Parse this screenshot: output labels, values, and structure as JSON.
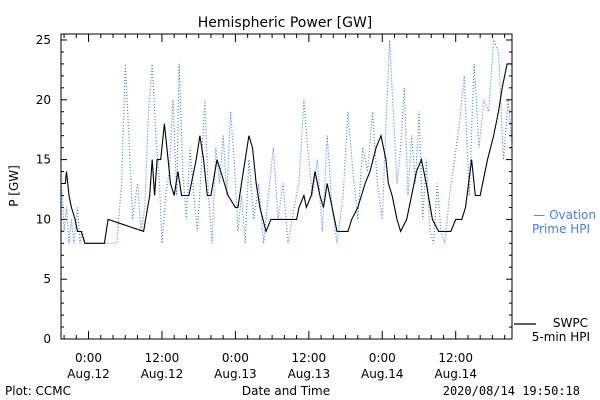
{
  "chart_data": {
    "type": "line",
    "title": "Hemispheric Power [GW]",
    "ylabel": "P [GW]",
    "xlabel": "Date and Time",
    "ylim": [
      0,
      25.5
    ],
    "yticks": [
      0,
      5,
      10,
      15,
      20,
      25
    ],
    "xlim_hours": [
      -2.25,
      34.6
    ],
    "x_ticks": [
      {
        "hour": 0,
        "time": "0:00",
        "date": "Aug.12"
      },
      {
        "hour": 6,
        "time": "12:00",
        "date": "Aug.12"
      },
      {
        "hour": 12,
        "time": "0:00",
        "date": "Aug.13"
      },
      {
        "hour": 18,
        "time": "12:00",
        "date": "Aug.13"
      },
      {
        "hour": 24,
        "time": "0:00",
        "date": "Aug.14"
      },
      {
        "hour": 30,
        "time": "12:00",
        "date": "Aug.14"
      }
    ],
    "series": [
      {
        "name": "SWPC 5-min HPI",
        "legend_lines": [
          "SWPC",
          "5-min HPI"
        ],
        "color": "#000000",
        "style": "solid",
        "points": [
          [
            -2.2,
            13
          ],
          [
            -1.9,
            13
          ],
          [
            -1.8,
            14
          ],
          [
            -1.6,
            12
          ],
          [
            -1.4,
            11
          ],
          [
            -1.1,
            10
          ],
          [
            -0.9,
            9
          ],
          [
            -0.6,
            9
          ],
          [
            -0.3,
            8
          ],
          [
            1.3,
            8
          ],
          [
            1.6,
            10
          ],
          [
            4.5,
            9
          ],
          [
            5.0,
            12
          ],
          [
            5.2,
            15
          ],
          [
            5.4,
            12
          ],
          [
            5.6,
            15
          ],
          [
            5.9,
            15
          ],
          [
            6.2,
            18
          ],
          [
            6.5,
            15
          ],
          [
            6.7,
            13
          ],
          [
            7.0,
            12
          ],
          [
            7.3,
            14
          ],
          [
            7.6,
            12
          ],
          [
            8.2,
            12
          ],
          [
            8.8,
            15
          ],
          [
            9.1,
            17
          ],
          [
            9.4,
            15
          ],
          [
            9.7,
            12
          ],
          [
            10.0,
            12
          ],
          [
            10.5,
            15
          ],
          [
            10.8,
            14
          ],
          [
            11.1,
            13
          ],
          [
            11.4,
            12
          ],
          [
            12.0,
            11
          ],
          [
            12.2,
            11
          ],
          [
            12.5,
            13
          ],
          [
            12.8,
            15
          ],
          [
            13.1,
            17
          ],
          [
            13.4,
            16
          ],
          [
            13.7,
            13
          ],
          [
            14.0,
            11
          ],
          [
            14.5,
            9
          ],
          [
            14.9,
            10
          ],
          [
            17.0,
            10
          ],
          [
            17.2,
            11
          ],
          [
            17.6,
            12
          ],
          [
            17.8,
            11
          ],
          [
            18.2,
            12
          ],
          [
            18.5,
            14
          ],
          [
            18.9,
            12
          ],
          [
            19.2,
            11
          ],
          [
            19.5,
            13
          ],
          [
            19.9,
            11
          ],
          [
            20.3,
            9
          ],
          [
            21.2,
            9
          ],
          [
            21.5,
            10
          ],
          [
            22.0,
            11
          ],
          [
            22.6,
            13
          ],
          [
            23.0,
            14
          ],
          [
            23.5,
            16
          ],
          [
            23.9,
            17
          ],
          [
            24.3,
            15
          ],
          [
            24.5,
            13
          ],
          [
            24.8,
            12
          ],
          [
            25.2,
            10
          ],
          [
            25.5,
            9
          ],
          [
            26.0,
            10
          ],
          [
            26.4,
            12
          ],
          [
            26.8,
            14
          ],
          [
            27.2,
            15
          ],
          [
            27.6,
            13
          ],
          [
            28.1,
            10
          ],
          [
            28.6,
            9
          ],
          [
            29.6,
            9
          ],
          [
            30.0,
            10
          ],
          [
            30.5,
            10
          ],
          [
            30.8,
            11
          ],
          [
            31.3,
            15
          ],
          [
            31.6,
            12
          ],
          [
            32.0,
            12
          ],
          [
            32.2,
            13
          ],
          [
            32.6,
            15
          ],
          [
            33.1,
            17
          ],
          [
            33.5,
            19
          ],
          [
            33.8,
            21
          ],
          [
            34.2,
            23
          ],
          [
            34.6,
            23
          ]
        ]
      },
      {
        "name": "Ovation Prime HPI",
        "legend_lines": [
          "— Ovation",
          "Prime HPI"
        ],
        "color": "#4a7fd4",
        "style": "dotted",
        "points": [
          [
            -2.2,
            13
          ],
          [
            -2.0,
            9
          ],
          [
            -1.8,
            11
          ],
          [
            -1.6,
            8
          ],
          [
            -1.4,
            10
          ],
          [
            -1.2,
            8
          ],
          [
            -0.9,
            11
          ],
          [
            -0.7,
            8
          ],
          [
            -0.5,
            9
          ],
          [
            -0.3,
            8
          ],
          [
            0.2,
            8
          ],
          [
            1.5,
            8
          ],
          [
            2.3,
            8
          ],
          [
            2.7,
            13
          ],
          [
            3.0,
            23
          ],
          [
            3.3,
            17
          ],
          [
            3.6,
            10
          ],
          [
            4.0,
            13
          ],
          [
            4.3,
            9
          ],
          [
            4.6,
            11
          ],
          [
            4.9,
            19
          ],
          [
            5.2,
            23
          ],
          [
            5.5,
            17
          ],
          [
            5.8,
            13
          ],
          [
            6.0,
            8
          ],
          [
            6.3,
            12
          ],
          [
            6.6,
            14
          ],
          [
            6.9,
            20
          ],
          [
            7.2,
            12
          ],
          [
            7.4,
            23
          ],
          [
            7.7,
            14
          ],
          [
            8.0,
            10
          ],
          [
            8.3,
            16
          ],
          [
            8.6,
            12
          ],
          [
            8.9,
            9
          ],
          [
            9.2,
            14
          ],
          [
            9.5,
            20
          ],
          [
            9.8,
            12
          ],
          [
            10.1,
            8
          ],
          [
            10.4,
            16
          ],
          [
            10.7,
            13
          ],
          [
            11.0,
            17
          ],
          [
            11.3,
            12
          ],
          [
            11.6,
            19
          ],
          [
            11.9,
            15
          ],
          [
            12.2,
            9
          ],
          [
            12.5,
            12
          ],
          [
            12.8,
            8
          ],
          [
            13.1,
            15
          ],
          [
            13.5,
            10
          ],
          [
            13.9,
            13
          ],
          [
            14.3,
            8
          ],
          [
            14.7,
            12
          ],
          [
            15.1,
            16
          ],
          [
            15.5,
            10
          ],
          [
            15.9,
            13
          ],
          [
            16.3,
            8
          ],
          [
            16.8,
            11
          ],
          [
            17.2,
            13
          ],
          [
            17.6,
            20
          ],
          [
            17.9,
            16
          ],
          [
            18.3,
            12
          ],
          [
            18.7,
            15
          ],
          [
            19.1,
            9
          ],
          [
            19.5,
            17
          ],
          [
            19.9,
            11
          ],
          [
            20.3,
            8
          ],
          [
            20.8,
            12
          ],
          [
            21.2,
            19
          ],
          [
            21.6,
            14
          ],
          [
            22.0,
            10
          ],
          [
            22.4,
            16
          ],
          [
            22.8,
            14
          ],
          [
            23.2,
            19
          ],
          [
            23.6,
            13
          ],
          [
            24.0,
            10
          ],
          [
            24.3,
            18
          ],
          [
            24.6,
            25
          ],
          [
            24.9,
            19
          ],
          [
            25.2,
            13
          ],
          [
            25.5,
            16
          ],
          [
            25.8,
            21
          ],
          [
            26.1,
            12
          ],
          [
            26.4,
            17
          ],
          [
            26.7,
            13
          ],
          [
            27.0,
            19
          ],
          [
            27.3,
            10
          ],
          [
            27.6,
            15
          ],
          [
            27.9,
            9
          ],
          [
            28.2,
            8
          ],
          [
            28.5,
            13
          ],
          [
            28.8,
            9
          ],
          [
            29.1,
            8
          ],
          [
            29.5,
            12
          ],
          [
            29.9,
            15
          ],
          [
            30.3,
            18
          ],
          [
            30.7,
            22
          ],
          [
            31.1,
            12
          ],
          [
            31.5,
            23
          ],
          [
            31.9,
            16
          ],
          [
            32.3,
            20
          ],
          [
            32.7,
            19
          ],
          [
            33.1,
            25
          ],
          [
            33.5,
            24
          ],
          [
            33.9,
            15
          ],
          [
            34.3,
            20
          ],
          [
            34.6,
            16
          ]
        ]
      }
    ],
    "footer_left": "Plot: CCMC",
    "footer_right": "2020/08/14 19:50:18"
  }
}
